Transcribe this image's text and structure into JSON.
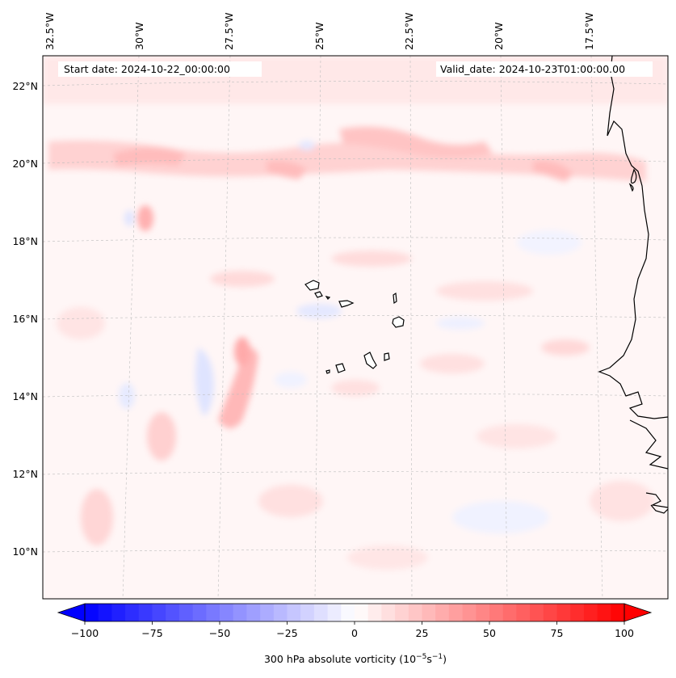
{
  "map": {
    "header": {
      "start_date": "Start date: 2024-10-22_00:00:00",
      "valid_date": "Valid_date: 2024-10-23T01:00:00.00"
    },
    "longitude_labels": [
      "32.5°W",
      "30°W",
      "27.5°W",
      "25°W",
      "22.5°W",
      "20°W",
      "17.5°W"
    ],
    "latitude_labels": [
      "22°N",
      "20°N",
      "18°N",
      "16°N",
      "14°N",
      "12°N",
      "10°N"
    ],
    "field": "300 hPa absolute vorticity",
    "feature": "Cabo Verde islands and West African coastline"
  },
  "colorbar": {
    "label": "300 hPa absolute vorticity (10",
    "label_exp1": "−5",
    "label_mid": "s",
    "label_exp2": "−1",
    "label_end": ")",
    "ticks": [
      "−100",
      "−75",
      "−50",
      "−25",
      "0",
      "25",
      "50",
      "75",
      "100"
    ],
    "tick_values": [
      -100,
      -75,
      -50,
      -25,
      0,
      25,
      50,
      75,
      100
    ],
    "min": -100,
    "max": 100,
    "step": 5,
    "colormap": "bwr",
    "neg_color": "#0000ff",
    "mid_color": "#ffffff",
    "pos_color": "#ff0000"
  }
}
